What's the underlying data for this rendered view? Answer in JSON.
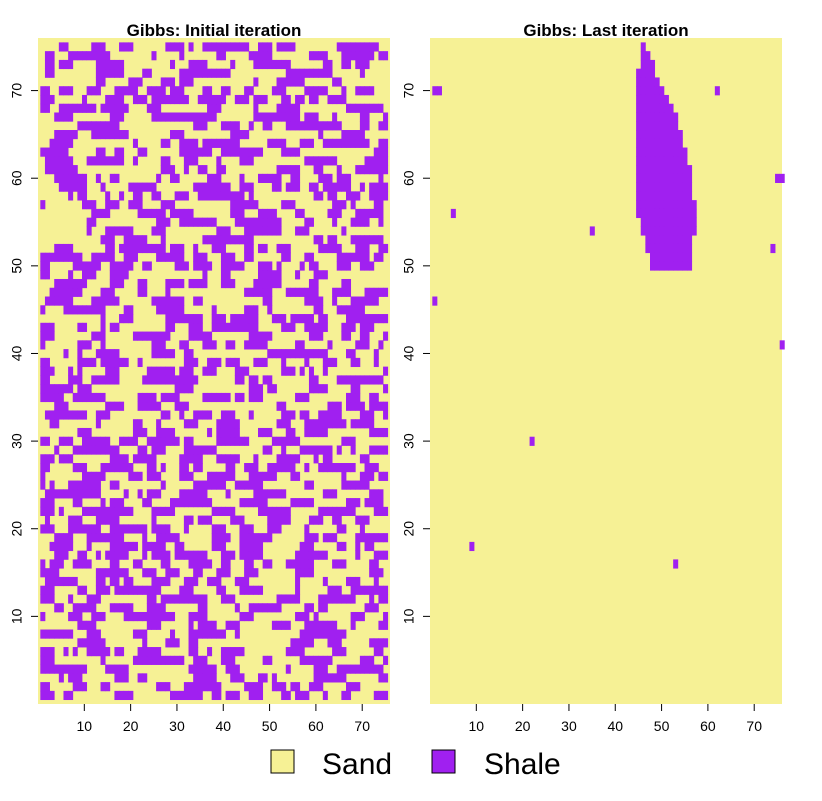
{
  "chart_data": [
    {
      "type": "heatmap",
      "title": "Gibbs: Initial iteration",
      "grid_size": [
        75,
        75
      ],
      "xlim": [
        0,
        76
      ],
      "ylim": [
        0,
        76
      ],
      "x_ticks": [
        10,
        20,
        30,
        40,
        50,
        60,
        70
      ],
      "y_ticks": [
        10,
        20,
        30,
        40,
        50,
        60,
        70
      ],
      "x_tick_labels": [
        "10",
        "20",
        "30",
        "40",
        "50",
        "60",
        "70"
      ],
      "y_tick_labels": [
        "10",
        "20",
        "30",
        "40",
        "50",
        "60",
        "70"
      ],
      "base_class": "Sand",
      "pattern": "random",
      "shale_fraction": 0.45,
      "seed": 12345
    },
    {
      "type": "heatmap",
      "title": "Gibbs: Last iteration",
      "grid_size": [
        75,
        75
      ],
      "xlim": [
        0,
        76
      ],
      "ylim": [
        0,
        76
      ],
      "x_ticks": [
        10,
        20,
        30,
        40,
        50,
        60,
        70
      ],
      "y_ticks": [
        10,
        20,
        30,
        40,
        50,
        60,
        70
      ],
      "x_tick_labels": [
        "10",
        "20",
        "30",
        "40",
        "50",
        "60",
        "70"
      ],
      "y_tick_labels": [
        "10",
        "20",
        "30",
        "40",
        "50",
        "60",
        "70"
      ],
      "base_class": "Sand",
      "pattern": "listed",
      "shale_rows": [
        {
          "y": 75,
          "x": [
            46
          ]
        },
        {
          "y": 74,
          "x": [
            46,
            47
          ]
        },
        {
          "y": 73,
          "x": [
            46,
            47,
            48
          ]
        },
        {
          "y": 72,
          "x": [
            45,
            46,
            47,
            48
          ]
        },
        {
          "y": 71,
          "x": [
            45,
            46,
            47,
            48,
            49
          ]
        },
        {
          "y": 70,
          "x": [
            45,
            46,
            47,
            48,
            49,
            50
          ]
        },
        {
          "y": 69,
          "x": [
            45,
            46,
            47,
            48,
            49,
            50,
            51
          ]
        },
        {
          "y": 68,
          "x": [
            45,
            46,
            47,
            48,
            49,
            50,
            51,
            52
          ]
        },
        {
          "y": 67,
          "x": [
            45,
            46,
            47,
            48,
            49,
            50,
            51,
            52,
            53
          ]
        },
        {
          "y": 66,
          "x": [
            45,
            46,
            47,
            48,
            49,
            50,
            51,
            52,
            53
          ]
        },
        {
          "y": 65,
          "x": [
            45,
            46,
            47,
            48,
            49,
            50,
            51,
            52,
            53,
            54
          ]
        },
        {
          "y": 64,
          "x": [
            45,
            46,
            47,
            48,
            49,
            50,
            51,
            52,
            53,
            54
          ]
        },
        {
          "y": 63,
          "x": [
            45,
            46,
            47,
            48,
            49,
            50,
            51,
            52,
            53,
            54,
            55
          ]
        },
        {
          "y": 62,
          "x": [
            45,
            46,
            47,
            48,
            49,
            50,
            51,
            52,
            53,
            54,
            55
          ]
        },
        {
          "y": 61,
          "x": [
            45,
            46,
            47,
            48,
            49,
            50,
            51,
            52,
            53,
            54,
            55,
            56
          ]
        },
        {
          "y": 60,
          "x": [
            45,
            46,
            47,
            48,
            49,
            50,
            51,
            52,
            53,
            54,
            55,
            56
          ]
        },
        {
          "y": 59,
          "x": [
            45,
            46,
            47,
            48,
            49,
            50,
            51,
            52,
            53,
            54,
            55,
            56
          ]
        },
        {
          "y": 58,
          "x": [
            45,
            46,
            47,
            48,
            49,
            50,
            51,
            52,
            53,
            54,
            55,
            56
          ]
        },
        {
          "y": 57,
          "x": [
            45,
            46,
            47,
            48,
            49,
            50,
            51,
            52,
            53,
            54,
            55,
            56,
            57
          ]
        },
        {
          "y": 56,
          "x": [
            45,
            46,
            47,
            48,
            49,
            50,
            51,
            52,
            53,
            54,
            55,
            56,
            57
          ]
        },
        {
          "y": 55,
          "x": [
            46,
            47,
            48,
            49,
            50,
            51,
            52,
            53,
            54,
            55,
            56,
            57
          ]
        },
        {
          "y": 54,
          "x": [
            46,
            47,
            48,
            49,
            50,
            51,
            52,
            53,
            54,
            55,
            56,
            57
          ]
        },
        {
          "y": 53,
          "x": [
            47,
            48,
            49,
            50,
            51,
            52,
            53,
            54,
            55,
            56
          ]
        },
        {
          "y": 52,
          "x": [
            47,
            48,
            49,
            50,
            51,
            52,
            53,
            54,
            55,
            56
          ]
        },
        {
          "y": 51,
          "x": [
            48,
            49,
            50,
            51,
            52,
            53,
            54,
            55,
            56
          ]
        },
        {
          "y": 50,
          "x": [
            48,
            49,
            50,
            51,
            52,
            53,
            54,
            55,
            56
          ]
        }
      ],
      "shale_points": [
        [
          1,
          70
        ],
        [
          2,
          70
        ],
        [
          62,
          70
        ],
        [
          75,
          60
        ],
        [
          76,
          60
        ],
        [
          5,
          56
        ],
        [
          35,
          54
        ],
        [
          74,
          52
        ],
        [
          1,
          46
        ],
        [
          76,
          41
        ],
        [
          22,
          30
        ],
        [
          9,
          18
        ],
        [
          53,
          16
        ]
      ]
    }
  ],
  "legend": {
    "placement": "bottom-center",
    "items": [
      {
        "label": "Sand",
        "color": "#f6f195"
      },
      {
        "label": "Shale",
        "color": "#a020f0"
      }
    ]
  },
  "colors": {
    "sand": "#f6f195",
    "shale": "#a020f0"
  }
}
